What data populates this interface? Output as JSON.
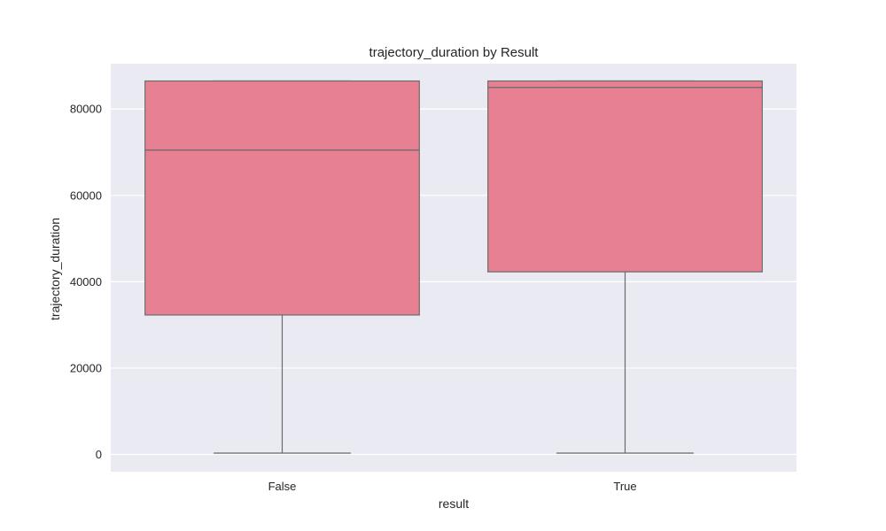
{
  "chart_data": {
    "type": "box",
    "title": "trajectory_duration by Result",
    "xlabel": "result",
    "ylabel": "trajectory_duration",
    "categories": [
      "False",
      "True"
    ],
    "boxes": [
      {
        "category": "False",
        "whisker_low": 300,
        "q1": 32300,
        "median": 70500,
        "q3": 86500,
        "whisker_high": 86500
      },
      {
        "category": "True",
        "whisker_low": 300,
        "q1": 42300,
        "median": 85000,
        "q3": 86500,
        "whisker_high": 86500
      }
    ],
    "yticks": [
      0,
      20000,
      40000,
      60000,
      80000
    ],
    "ytick_labels": [
      "0",
      "20000",
      "40000",
      "60000",
      "80000"
    ],
    "ylim": [
      -4000,
      90500
    ],
    "grid": true,
    "colors": {
      "plot_background": "#EAEAF2",
      "box_fill": "#E88093",
      "box_edge": "#6B6B6B",
      "grid": "#FFFFFF",
      "text": "#262626"
    }
  }
}
